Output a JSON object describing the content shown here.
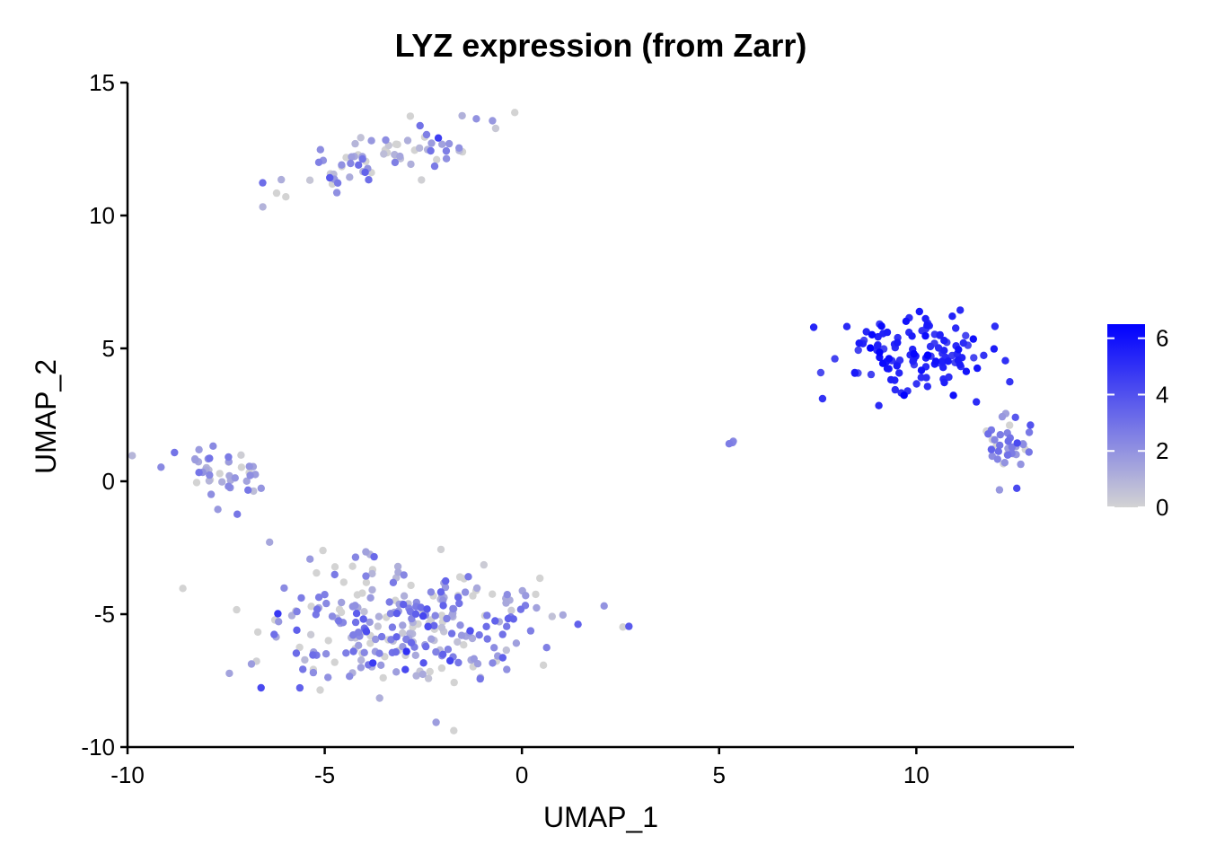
{
  "chart_data": {
    "type": "scatter",
    "title": "LYZ expression (from Zarr)",
    "xlabel": "UMAP_1",
    "ylabel": "UMAP_2",
    "xlim": [
      -10,
      14
    ],
    "ylim": [
      -10,
      15
    ],
    "x_ticks": [
      -10,
      -5,
      0,
      5,
      10
    ],
    "y_ticks": [
      15,
      10,
      5,
      0,
      -5,
      -10
    ],
    "x_tick_labels": [
      "-10",
      "-5",
      "0",
      "5",
      "10"
    ],
    "y_tick_labels": [
      "15",
      "10",
      "5",
      "0",
      "-5",
      "-10"
    ],
    "grid": false,
    "legend": {
      "position": "right",
      "type": "colorbar",
      "range": [
        0,
        6.5
      ],
      "ticks": [
        6,
        4,
        2,
        0
      ],
      "tick_labels": [
        "6",
        "4",
        "2",
        "0"
      ],
      "color_low": "#d3d3d3",
      "color_high": "#0000ff"
    },
    "clusters": [
      {
        "center": [
          -3.6,
          12.1
        ],
        "n": 75,
        "spread": [
          1.6,
          0.55
        ],
        "slope": 0.45,
        "expr_mean": 1.2,
        "expr_sd": 1.2
      },
      {
        "center": [
          -7.7,
          0.2
        ],
        "n": 45,
        "spread": [
          0.9,
          0.7
        ],
        "slope": -0.4,
        "expr_mean": 1.5,
        "expr_sd": 1.0
      },
      {
        "center": [
          -3.0,
          -5.4
        ],
        "n": 290,
        "spread": [
          2.1,
          1.4
        ],
        "slope": 0.0,
        "expr_mean": 1.9,
        "expr_sd": 1.2
      },
      {
        "center": [
          10.3,
          4.7
        ],
        "n": 125,
        "spread": [
          1.2,
          0.9
        ],
        "slope": 0.0,
        "expr_mean": 5.3,
        "expr_sd": 0.6
      },
      {
        "center": [
          12.3,
          1.4
        ],
        "n": 40,
        "spread": [
          0.35,
          0.7
        ],
        "slope": 0.0,
        "expr_mean": 2.6,
        "expr_sd": 0.7
      },
      {
        "center": [
          5.3,
          1.45
        ],
        "n": 3,
        "spread": [
          0.05,
          0.05
        ],
        "slope": 0.0,
        "expr_mean": 2.5,
        "expr_sd": 0.3
      }
    ]
  }
}
